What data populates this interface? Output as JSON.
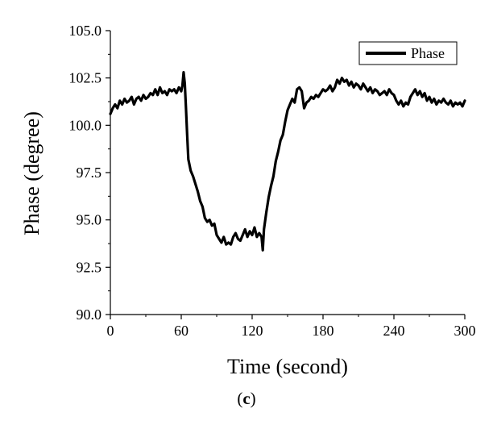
{
  "chart_data": {
    "type": "line",
    "title": "",
    "xlabel": "Time (second)",
    "ylabel": "Phase (degree)",
    "xlim": [
      0,
      300
    ],
    "ylim": [
      90,
      105
    ],
    "xticks": [
      0,
      60,
      120,
      180,
      240,
      300
    ],
    "xtick_labels": [
      "0",
      "60",
      "120",
      "180",
      "240",
      "300"
    ],
    "yticks": [
      90,
      92.5,
      95,
      97.5,
      100,
      102.5,
      105
    ],
    "ytick_labels": [
      "90.0",
      "92.5",
      "95.0",
      "97.5",
      "100.0",
      "102.5",
      "105.0"
    ],
    "grid": false,
    "legend": {
      "position": "top-right",
      "entries": [
        "Phase"
      ]
    },
    "series": [
      {
        "name": "Phase",
        "color": "#000000",
        "x": [
          0,
          2,
          4,
          6,
          8,
          10,
          12,
          14,
          16,
          18,
          20,
          22,
          24,
          26,
          28,
          30,
          32,
          34,
          36,
          38,
          40,
          42,
          44,
          46,
          48,
          50,
          52,
          54,
          56,
          58,
          60,
          61,
          62,
          63,
          64,
          65,
          66,
          67,
          68,
          70,
          72,
          74,
          76,
          78,
          80,
          82,
          84,
          86,
          88,
          90,
          92,
          94,
          96,
          98,
          100,
          102,
          104,
          106,
          108,
          110,
          112,
          114,
          116,
          118,
          120,
          122,
          124,
          126,
          128,
          129,
          130,
          132,
          134,
          136,
          138,
          140,
          142,
          144,
          146,
          148,
          150,
          152,
          154,
          156,
          158,
          160,
          162,
          164,
          166,
          168,
          170,
          172,
          174,
          176,
          178,
          180,
          182,
          184,
          186,
          188,
          190,
          192,
          194,
          196,
          198,
          200,
          202,
          204,
          206,
          208,
          210,
          212,
          214,
          216,
          218,
          220,
          222,
          224,
          226,
          228,
          230,
          232,
          234,
          236,
          238,
          240,
          242,
          244,
          246,
          248,
          250,
          252,
          254,
          256,
          258,
          260,
          262,
          264,
          266,
          268,
          270,
          272,
          274,
          276,
          278,
          280,
          282,
          284,
          286,
          288,
          290,
          292,
          294,
          296,
          298,
          300
        ],
        "values": [
          100.6,
          100.9,
          101.1,
          100.9,
          101.3,
          101.1,
          101.4,
          101.2,
          101.3,
          101.5,
          101.1,
          101.4,
          101.5,
          101.3,
          101.6,
          101.4,
          101.5,
          101.7,
          101.6,
          101.9,
          101.6,
          102.0,
          101.7,
          101.8,
          101.6,
          101.9,
          101.8,
          101.9,
          101.7,
          102.0,
          101.8,
          102.1,
          102.8,
          102.2,
          100.9,
          99.5,
          98.2,
          97.9,
          97.6,
          97.3,
          96.9,
          96.5,
          96.0,
          95.7,
          95.1,
          94.9,
          95.0,
          94.7,
          94.8,
          94.2,
          94.0,
          93.8,
          94.1,
          93.7,
          93.8,
          93.7,
          94.1,
          94.3,
          94.0,
          93.9,
          94.2,
          94.5,
          94.1,
          94.4,
          94.2,
          94.6,
          94.1,
          94.3,
          94.1,
          93.4,
          94.5,
          95.4,
          96.2,
          96.8,
          97.3,
          98.1,
          98.6,
          99.2,
          99.5,
          100.2,
          100.8,
          101.1,
          101.4,
          101.2,
          101.9,
          102.0,
          101.8,
          100.9,
          101.2,
          101.3,
          101.5,
          101.4,
          101.6,
          101.5,
          101.7,
          101.9,
          101.8,
          101.9,
          102.1,
          101.8,
          102.0,
          102.4,
          102.2,
          102.5,
          102.3,
          102.4,
          102.1,
          102.3,
          102.0,
          102.2,
          102.1,
          101.9,
          102.2,
          102.0,
          101.8,
          102.0,
          101.7,
          101.9,
          101.8,
          101.6,
          101.7,
          101.8,
          101.6,
          101.9,
          101.7,
          101.6,
          101.3,
          101.1,
          101.3,
          101.0,
          101.2,
          101.1,
          101.5,
          101.7,
          101.9,
          101.6,
          101.8,
          101.5,
          101.7,
          101.3,
          101.5,
          101.2,
          101.4,
          101.1,
          101.3,
          101.2,
          101.4,
          101.2,
          101.1,
          101.3,
          101.0,
          101.2,
          101.1,
          101.2,
          101.0,
          101.3
        ]
      }
    ]
  },
  "caption": {
    "open": "(",
    "letter": "c",
    "close": ")"
  }
}
